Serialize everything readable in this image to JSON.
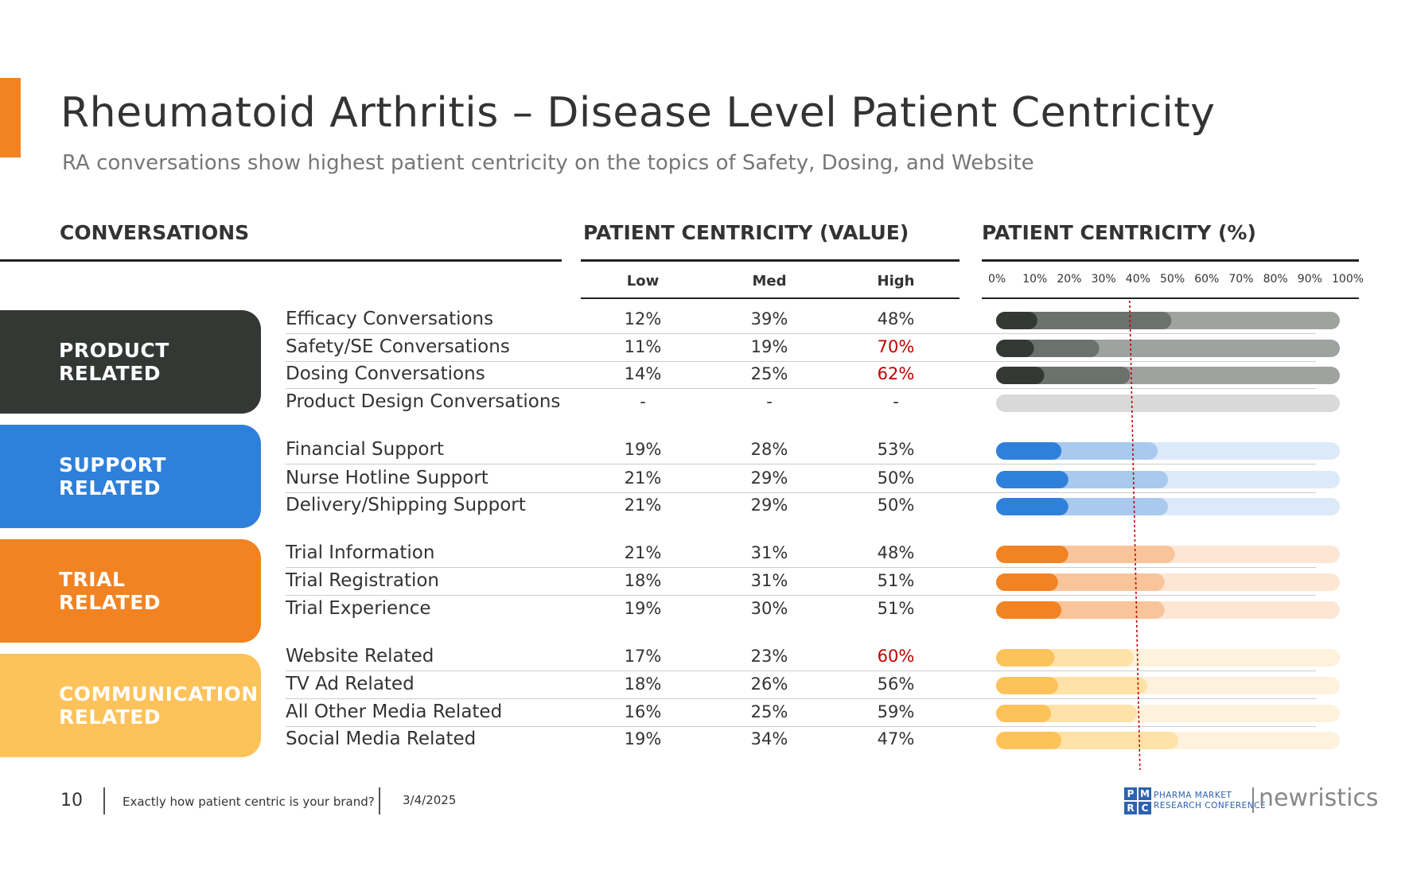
{
  "title": "Rheumatoid Arthritis – Disease Level Patient Centricity",
  "subtitle": "RA conversations show highest patient centricity on the topics of Safety, Dosing, and Website",
  "headers": {
    "conversations": "CONVERSATIONS",
    "value": "PATIENT CENTRICITY (VALUE)",
    "pct": "PATIENT CENTRICITY (%)"
  },
  "columns": {
    "low": "Low",
    "med": "Med",
    "high": "High"
  },
  "highlight_color": "#C00000",
  "categories": [
    {
      "label": "PRODUCT\nRELATED",
      "color": "#333835"
    },
    {
      "label": "SUPPORT\nRELATED",
      "color": "#2F80DA"
    },
    {
      "label": "TRIAL\nRELATED",
      "color": "#F28322"
    },
    {
      "label": "COMMUNICATION\nRELATED",
      "color": "#FDC25A"
    }
  ],
  "rows": [
    {
      "label": "Efficacy Conversations",
      "low": "12%",
      "med": "39%",
      "high": "48%",
      "high_highlight": false
    },
    {
      "label": "Safety/SE Conversations",
      "low": "11%",
      "med": "19%",
      "high": "70%",
      "high_highlight": true
    },
    {
      "label": "Dosing Conversations",
      "low": "14%",
      "med": "25%",
      "high": "62%",
      "high_highlight": true
    },
    {
      "label": "Product Design Conversations",
      "low": "-",
      "med": "-",
      "high": "-",
      "high_highlight": false
    },
    {
      "label": "Financial Support",
      "low": "19%",
      "med": "28%",
      "high": "53%",
      "high_highlight": false
    },
    {
      "label": "Nurse Hotline Support",
      "low": "21%",
      "med": "29%",
      "high": "50%",
      "high_highlight": false
    },
    {
      "label": "Delivery/Shipping Support",
      "low": "21%",
      "med": "29%",
      "high": "50%",
      "high_highlight": false
    },
    {
      "label": "Trial Information",
      "low": "21%",
      "med": "31%",
      "high": "48%",
      "high_highlight": false
    },
    {
      "label": "Trial Registration",
      "low": "18%",
      "med": "31%",
      "high": "51%",
      "high_highlight": false
    },
    {
      "label": "Trial Experience",
      "low": "19%",
      "med": "30%",
      "high": "51%",
      "high_highlight": false
    },
    {
      "label": "Website Related",
      "low": "17%",
      "med": "23%",
      "high": "60%",
      "high_highlight": true
    },
    {
      "label": "TV Ad Related",
      "low": "18%",
      "med": "26%",
      "high": "56%",
      "high_highlight": false
    },
    {
      "label": "All Other Media Related",
      "low": "16%",
      "med": "25%",
      "high": "59%",
      "high_highlight": false
    },
    {
      "label": "Social Media Related",
      "low": "19%",
      "med": "34%",
      "high": "47%",
      "high_highlight": false
    }
  ],
  "chart_data": {
    "type": "bar",
    "title": "PATIENT CENTRICITY (%)",
    "orientation": "horizontal-stacked",
    "xlim": [
      0,
      100
    ],
    "ticks": [
      "0%",
      "10%",
      "20%",
      "30%",
      "40%",
      "50%",
      "60%",
      "70%",
      "80%",
      "90%",
      "100%"
    ],
    "reference_line": 40,
    "categories": [
      "Efficacy Conversations",
      "Safety/SE Conversations",
      "Dosing Conversations",
      "Product Design Conversations",
      "Financial Support",
      "Nurse Hotline Support",
      "Delivery/Shipping Support",
      "Trial Information",
      "Trial Registration",
      "Trial Experience",
      "Website Related",
      "TV Ad Related",
      "All Other Media Related",
      "Social Media Related"
    ],
    "series": [
      {
        "name": "Low",
        "values": [
          12,
          11,
          14,
          null,
          19,
          21,
          21,
          21,
          18,
          19,
          17,
          18,
          16,
          19
        ]
      },
      {
        "name": "Med",
        "values": [
          39,
          19,
          25,
          null,
          28,
          29,
          29,
          31,
          31,
          30,
          23,
          26,
          25,
          34
        ]
      },
      {
        "name": "High",
        "values": [
          48,
          70,
          62,
          null,
          53,
          50,
          50,
          48,
          51,
          51,
          60,
          56,
          59,
          47
        ]
      }
    ],
    "group_colors": [
      [
        "#333835",
        "#6B716C",
        "#9FA3A0"
      ],
      [
        "#2F80DA",
        "#A9C9EE",
        "#DCE9F9"
      ],
      [
        "#F28322",
        "#F9C49A",
        "#FDE6D4"
      ],
      [
        "#FDC25A",
        "#FEE2A8",
        "#FEF2DC"
      ]
    ],
    "empty_color": "#D9D9D9",
    "reference_color": "#C00000"
  },
  "footer": {
    "page": "10",
    "text": "Exactly how patient centric is your brand?",
    "date": "3/4/2025",
    "logo_letters": [
      "P",
      "M",
      "R",
      "C"
    ],
    "logo_text": "PHARMA MARKET\nRESEARCH CONFERENCE",
    "brand": "newristics"
  }
}
